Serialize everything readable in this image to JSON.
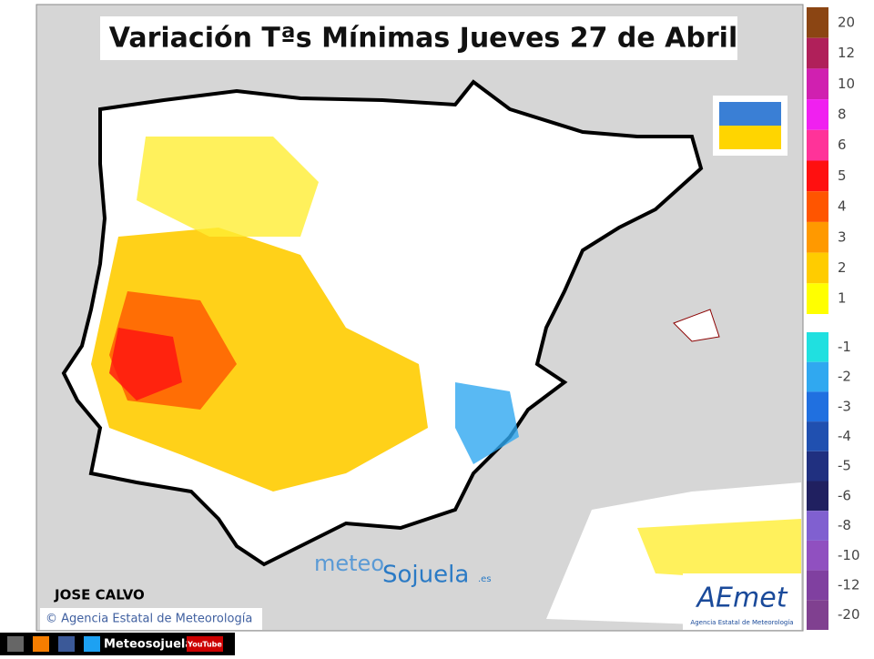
{
  "header": {
    "title": "Variación Tªs Mínimas Jueves 27 de Abril"
  },
  "legend": {
    "warm": [
      {
        "value": 20,
        "color": "#8b4513"
      },
      {
        "value": 12,
        "color": "#b0205a"
      },
      {
        "value": 10,
        "color": "#d020b0"
      },
      {
        "value": 8,
        "color": "#f020f0"
      },
      {
        "value": 6,
        "color": "#ff3399"
      },
      {
        "value": 5,
        "color": "#ff1010"
      },
      {
        "value": 4,
        "color": "#ff5500"
      },
      {
        "value": 3,
        "color": "#ff9900"
      },
      {
        "value": 2,
        "color": "#ffcc00"
      },
      {
        "value": 1,
        "color": "#ffff00"
      }
    ],
    "cold": [
      {
        "value": -1,
        "color": "#20e0e0"
      },
      {
        "value": -2,
        "color": "#30a8f0"
      },
      {
        "value": -3,
        "color": "#2070e0"
      },
      {
        "value": -4,
        "color": "#2050b0"
      },
      {
        "value": -5,
        "color": "#203080"
      },
      {
        "value": -6,
        "color": "#202060"
      },
      {
        "value": -8,
        "color": "#8060d0"
      },
      {
        "value": -10,
        "color": "#9050c0"
      },
      {
        "value": -12,
        "color": "#8040a0"
      },
      {
        "value": -20,
        "color": "#804090"
      }
    ]
  },
  "credits": {
    "author": "JOSE CALVO",
    "agency": "© Agencia Estatal de Meteorología",
    "brand_meteo": "meteo",
    "brand_sojuela": "Sojuela",
    "brand_domain": ".es",
    "logo": "AEmet",
    "logo_sub": "Agencia Estatal de Meteorología",
    "social": "Meteosojuela",
    "youtube": "YouTube"
  }
}
